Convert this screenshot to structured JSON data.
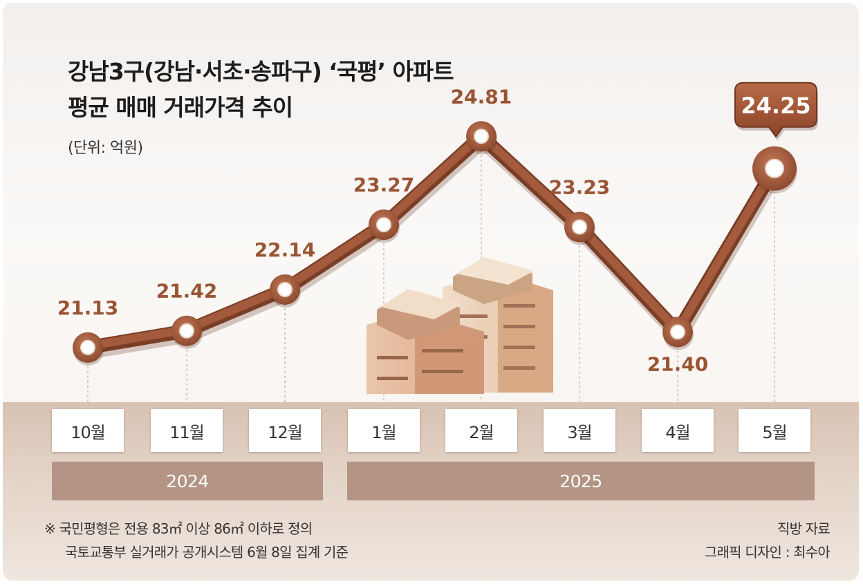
{
  "title_line1": "강남3구(강남·서초·송파구) ‘국평’ 아파트",
  "title_line2": "평균 매매 거래가격 추이",
  "unit": "(단위: 억원)",
  "colors": {
    "line": "#a45a3c",
    "line_dark": "#7a3e26",
    "label": "#9a5433",
    "year_bar": "#b49484"
  },
  "chart_data": {
    "type": "line",
    "categories": [
      "10월",
      "11월",
      "12월",
      "1월",
      "2월",
      "3월",
      "4월",
      "5월"
    ],
    "values": [
      21.13,
      21.42,
      22.14,
      23.27,
      24.81,
      23.23,
      21.4,
      24.25
    ],
    "value_labels": [
      "21.13",
      "21.42",
      "22.14",
      "23.27",
      "24.81",
      "23.23",
      "21.40",
      "24.25"
    ],
    "highlight_index": 7,
    "ylim": [
      20.2,
      25.5
    ],
    "years": [
      {
        "label": "2024",
        "months": [
          "10월",
          "11월",
          "12월"
        ]
      },
      {
        "label": "2025",
        "months": [
          "1월",
          "2월",
          "3월",
          "4월",
          "5월"
        ]
      }
    ],
    "grid": false
  },
  "footnote_line1": "※ 국민평형은 전용 83㎡ 이상 86㎡ 이하로 정의",
  "footnote_line2": "국토교통부 실거래가 공개시스템 6월 8일 집계 기준",
  "source_line1": "직방 자료",
  "source_line2": "그래픽 디자인 : 최수아"
}
